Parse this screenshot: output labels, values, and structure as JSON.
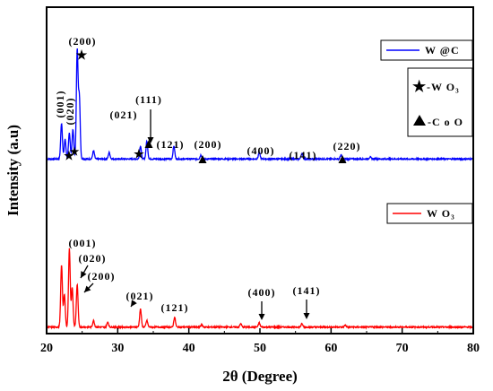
{
  "chart_data": {
    "type": "line",
    "title": "",
    "xlabel": "2θ (Degree)",
    "ylabel": "Intensity (a.u)",
    "xlim": [
      20,
      80
    ],
    "xticks": [
      20,
      30,
      40,
      50,
      60,
      70,
      80
    ],
    "ylim": [
      0,
      1
    ],
    "grid": false,
    "legend_placement": "right",
    "series": [
      {
        "name": "W @C",
        "color": "#0000ff",
        "baseline": 0.535,
        "peaks": [
          {
            "x": 22.1,
            "y": 0.11
          },
          {
            "x": 22.6,
            "y": 0.06
          },
          {
            "x": 23.2,
            "y": 0.08
          },
          {
            "x": 23.7,
            "y": 0.09
          },
          {
            "x": 24.3,
            "y": 0.33
          },
          {
            "x": 24.6,
            "y": 0.19
          },
          {
            "x": 26.6,
            "y": 0.025
          },
          {
            "x": 28.8,
            "y": 0.02
          },
          {
            "x": 33.2,
            "y": 0.04
          },
          {
            "x": 34.1,
            "y": 0.055
          },
          {
            "x": 37.9,
            "y": 0.04
          },
          {
            "x": 41.7,
            "y": 0.012
          },
          {
            "x": 49.9,
            "y": 0.02
          },
          {
            "x": 55.9,
            "y": 0.017
          },
          {
            "x": 61.4,
            "y": 0.012
          },
          {
            "x": 65.5,
            "y": 0.006
          }
        ]
      },
      {
        "name": "W O₃",
        "color": "#ff0000",
        "baseline": 0.02,
        "peaks": [
          {
            "x": 22.1,
            "y": 0.19
          },
          {
            "x": 22.5,
            "y": 0.1
          },
          {
            "x": 23.2,
            "y": 0.24
          },
          {
            "x": 23.6,
            "y": 0.12
          },
          {
            "x": 24.3,
            "y": 0.13
          },
          {
            "x": 26.6,
            "y": 0.02
          },
          {
            "x": 28.6,
            "y": 0.015
          },
          {
            "x": 33.2,
            "y": 0.055
          },
          {
            "x": 34.1,
            "y": 0.02
          },
          {
            "x": 38.0,
            "y": 0.03
          },
          {
            "x": 41.8,
            "y": 0.008
          },
          {
            "x": 47.3,
            "y": 0.01
          },
          {
            "x": 49.9,
            "y": 0.012
          },
          {
            "x": 55.9,
            "y": 0.01
          },
          {
            "x": 62.0,
            "y": 0.006
          }
        ]
      }
    ],
    "annotations": [
      {
        "text": "(200)",
        "series": "W @C"
      },
      {
        "text": "(001)",
        "series": "W @C"
      },
      {
        "text": "(020)",
        "series": "W @C"
      },
      {
        "text": "(021)",
        "series": "W @C"
      },
      {
        "text": "(111)",
        "series": "W @C"
      },
      {
        "text": "(121)",
        "series": "W @C"
      },
      {
        "text": "(200)",
        "series": "W @C"
      },
      {
        "text": "(400)",
        "series": "W @C"
      },
      {
        "text": "(141)",
        "series": "W @C"
      },
      {
        "text": "(220)",
        "series": "W @C"
      },
      {
        "text": "(001)",
        "series": "W O₃"
      },
      {
        "text": "(020)",
        "series": "W O₃"
      },
      {
        "text": "(200)",
        "series": "W O₃"
      },
      {
        "text": "(021)",
        "series": "W O₃"
      },
      {
        "text": "(121)",
        "series": "W O₃"
      },
      {
        "text": "(400)",
        "series": "W O₃"
      },
      {
        "text": "(141)",
        "series": "W O₃"
      }
    ],
    "phase_legend": [
      {
        "symbol": "star",
        "label": "-W O₃"
      },
      {
        "symbol": "triangle",
        "label": "-C o O"
      }
    ]
  }
}
